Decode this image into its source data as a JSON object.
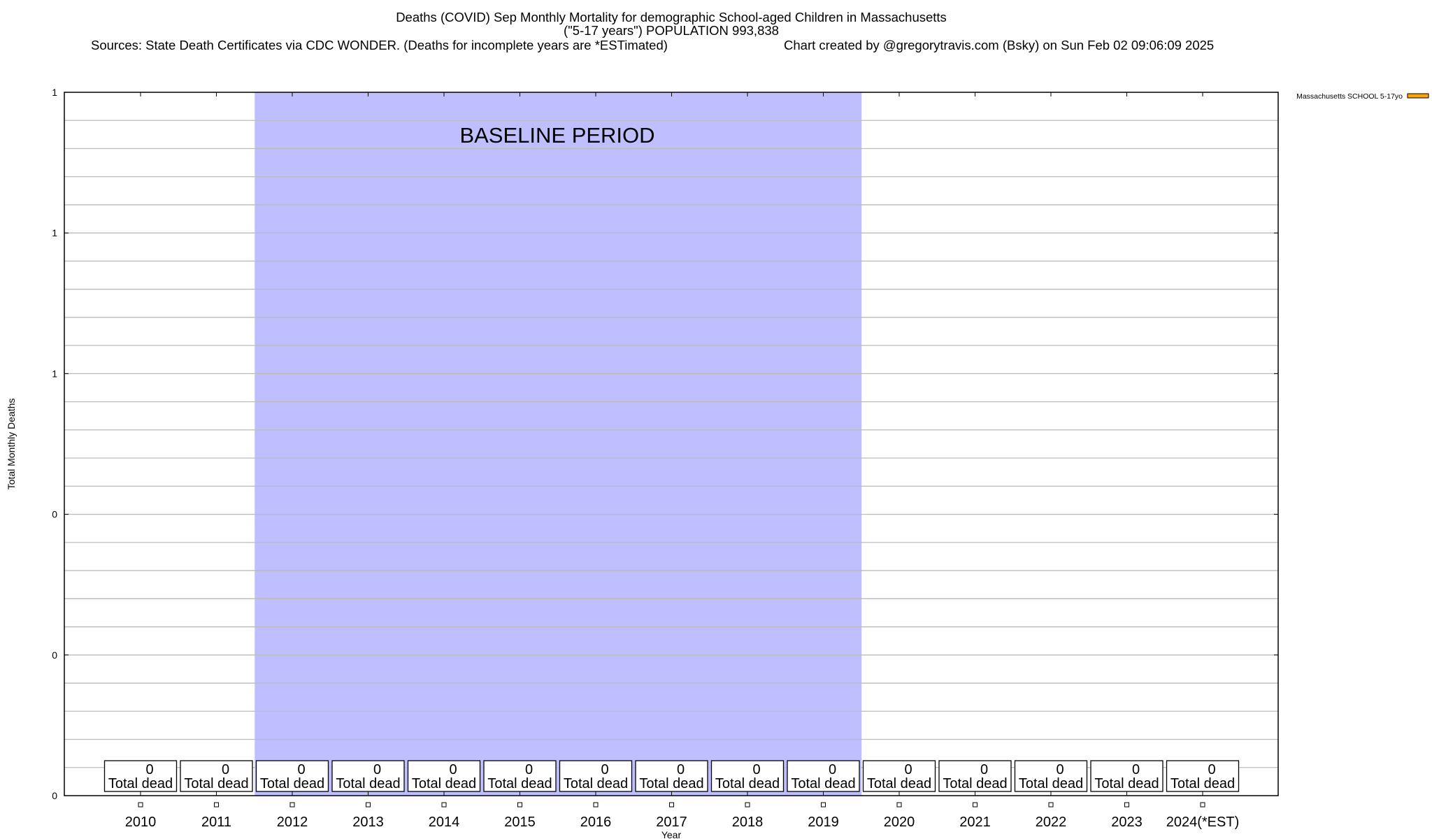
{
  "chart_data": {
    "type": "bar",
    "title_lines": [
      "Deaths (COVID) Sep Monthly Mortality for demographic School-aged Children in Massachusetts",
      "(\"5-17 years\") POPULATION 993,838"
    ],
    "sources": "Sources: State Death Certificates via CDC WONDER. (Deaths for incomplete years are *ESTimated)",
    "credit": "Chart created by @gregorytravis.com (Bsky) on Sun Feb 02 09:06:09 2025",
    "xlabel": "Year",
    "ylabel": "Total Monthly Deaths",
    "ylim": [
      0,
      1
    ],
    "yticks": [
      {
        "value": 1,
        "label": "1"
      },
      {
        "value": 0.8,
        "label": "1"
      },
      {
        "value": 0.6,
        "label": "1"
      },
      {
        "value": 0.4,
        "label": "0"
      },
      {
        "value": 0.2,
        "label": "0"
      },
      {
        "value": 0,
        "label": "0"
      }
    ],
    "grid": true,
    "categories": [
      "2010",
      "2011",
      "2012",
      "2013",
      "2014",
      "2015",
      "2016",
      "2017",
      "2018",
      "2019",
      "2020",
      "2021",
      "2022",
      "2023",
      "2024(*EST)"
    ],
    "series": [
      {
        "name": "Massachusetts SCHOOL 5-17yo",
        "color": "#ffa500",
        "values": [
          0,
          0,
          0,
          0,
          0,
          0,
          0,
          0,
          0,
          0,
          0,
          0,
          0,
          0,
          0
        ]
      }
    ],
    "data_label_suffix": "Total dead",
    "baseline": {
      "label": "BASELINE PERIOD",
      "from": "2012",
      "to": "2019",
      "color": "#bfbfff"
    },
    "legend_placement": "top-right"
  }
}
